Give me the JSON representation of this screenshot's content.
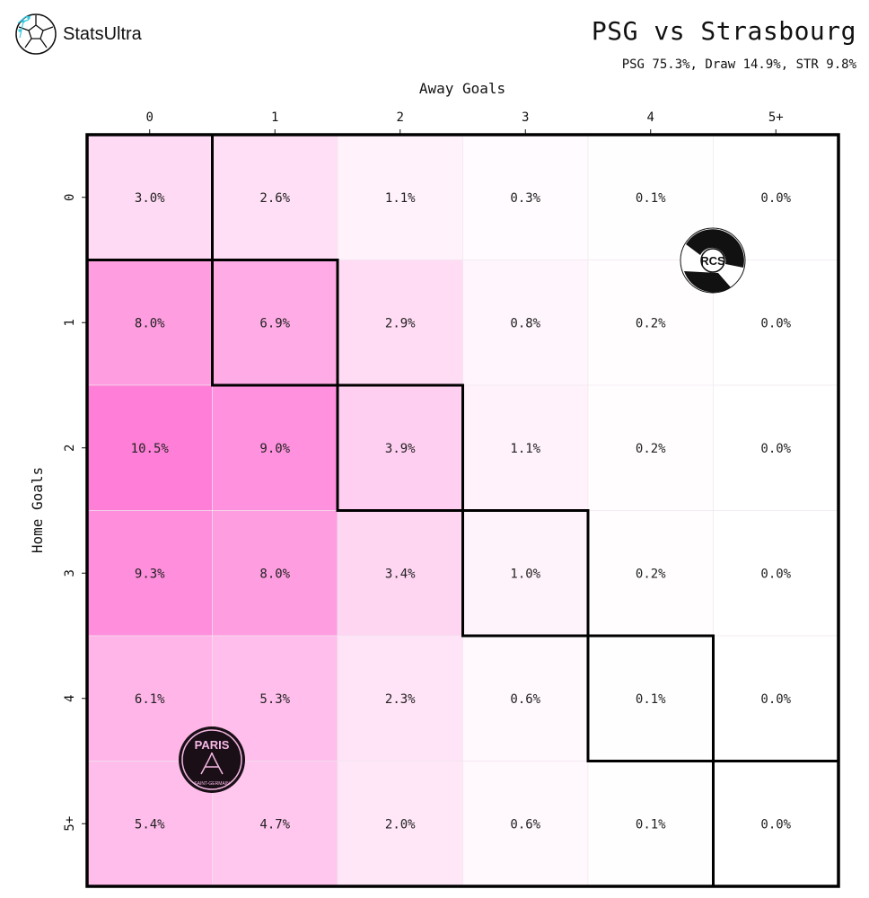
{
  "brand": {
    "name": "StatsUltra",
    "icon": "soccer-ball-icon"
  },
  "header": {
    "title": "PSG vs Strasbourg",
    "subtitle": "PSG 75.3%, Draw 14.9%, STR 9.8%"
  },
  "colors": {
    "max": "#ff7fd8",
    "min": "#ffffff",
    "border": "#000000"
  },
  "chart_data": {
    "type": "heatmap",
    "xlabel": "Away Goals",
    "ylabel": "Home Goals",
    "x_categories": [
      "0",
      "1",
      "2",
      "3",
      "4",
      "5+"
    ],
    "y_categories": [
      "0",
      "1",
      "2",
      "3",
      "4",
      "5+"
    ],
    "values": [
      [
        3.0,
        2.6,
        1.1,
        0.3,
        0.1,
        0.0
      ],
      [
        8.0,
        6.9,
        2.9,
        0.8,
        0.2,
        0.0
      ],
      [
        10.5,
        9.0,
        3.9,
        1.1,
        0.2,
        0.0
      ],
      [
        9.3,
        8.0,
        3.4,
        1.0,
        0.2,
        0.0
      ],
      [
        6.1,
        5.3,
        2.3,
        0.6,
        0.1,
        0.0
      ],
      [
        5.4,
        4.7,
        2.0,
        0.6,
        0.1,
        0.0
      ]
    ],
    "labels": [
      [
        "3.0%",
        "2.6%",
        "1.1%",
        "0.3%",
        "0.1%",
        "0.0%"
      ],
      [
        "8.0%",
        "6.9%",
        "2.9%",
        "0.8%",
        "0.2%",
        "0.0%"
      ],
      [
        "10.5%",
        "9.0%",
        "3.9%",
        "1.1%",
        "0.2%",
        "0.0%"
      ],
      [
        "9.3%",
        "8.0%",
        "3.4%",
        "1.0%",
        "0.2%",
        "0.0%"
      ],
      [
        "6.1%",
        "5.3%",
        "2.3%",
        "0.6%",
        "0.1%",
        "0.0%"
      ],
      [
        "5.4%",
        "4.7%",
        "2.0%",
        "0.6%",
        "0.1%",
        "0.0%"
      ]
    ],
    "highlight": "draw diagonal outlined",
    "x_axis_position": "top",
    "logos": {
      "home": "PSG",
      "away": "RC Strasbourg Alsace"
    }
  }
}
